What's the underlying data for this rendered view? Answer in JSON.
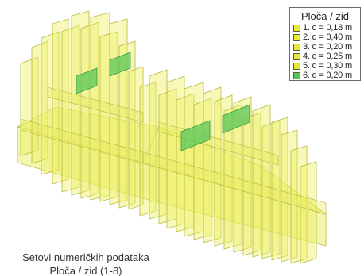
{
  "legend": {
    "title": "Ploča / zid",
    "items": [
      {
        "label": "1. d = 0,18 m",
        "color": "#eaea3a"
      },
      {
        "label": "2. d = 0,40 m",
        "color": "#e9e93a"
      },
      {
        "label": "3. d = 0,20 m",
        "color": "#e8e83a"
      },
      {
        "label": "4. d = 0,25 m",
        "color": "#e7e73a"
      },
      {
        "label": "5. d = 0,30 m",
        "color": "#e6e63a"
      },
      {
        "label": "6. d = 0,20 m",
        "color": "#57c657"
      }
    ]
  },
  "caption": {
    "line1": "Setovi numeričkih podataka",
    "line2": "Ploča / zid (1-8)"
  },
  "colors": {
    "wall_fill": "#e8ec5c",
    "wall_stroke": "#b9bf3a",
    "green_fill": "#58c65a",
    "background": "#ffffff"
  }
}
